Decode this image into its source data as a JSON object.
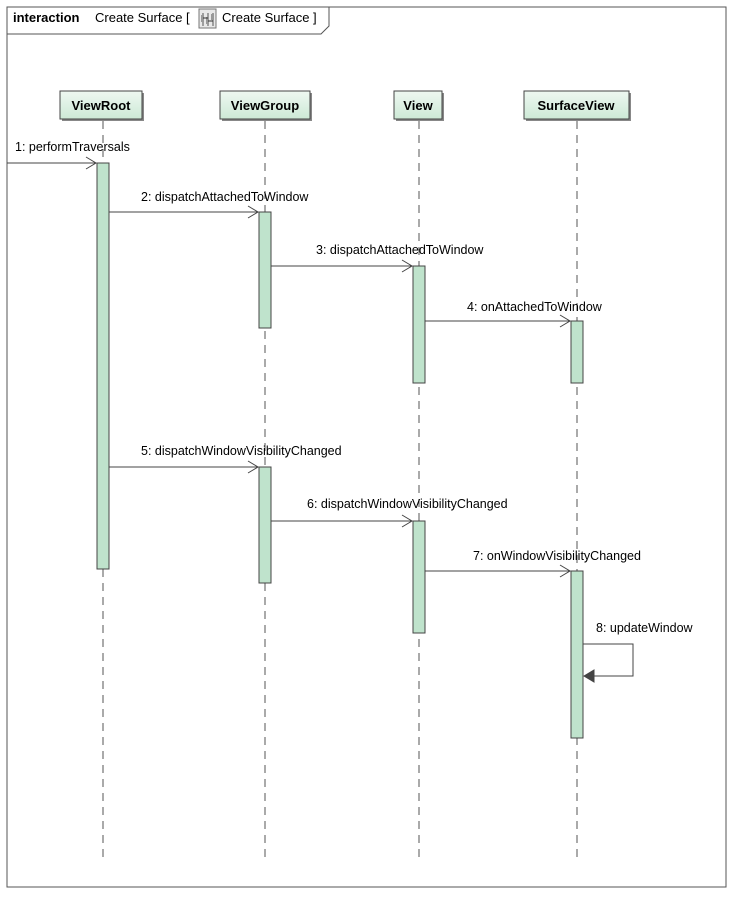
{
  "frame": {
    "keyword": "interaction",
    "name": "Create Surface [",
    "ref_name": "Create Surface ]"
  },
  "lifelines": [
    {
      "id": "viewroot",
      "label": "ViewRoot"
    },
    {
      "id": "viewgroup",
      "label": "ViewGroup"
    },
    {
      "id": "view",
      "label": "View"
    },
    {
      "id": "surfaceview",
      "label": "SurfaceView"
    }
  ],
  "messages": [
    {
      "id": 1,
      "label": "1: performTraversals",
      "from": "external",
      "to": "viewroot"
    },
    {
      "id": 2,
      "label": "2: dispatchAttachedToWindow",
      "from": "viewroot",
      "to": "viewgroup"
    },
    {
      "id": 3,
      "label": "3: dispatchAttachedToWindow",
      "from": "viewgroup",
      "to": "view"
    },
    {
      "id": 4,
      "label": "4: onAttachedToWindow",
      "from": "view",
      "to": "surfaceview"
    },
    {
      "id": 5,
      "label": "5: dispatchWindowVisibilityChanged",
      "from": "viewroot",
      "to": "viewgroup"
    },
    {
      "id": 6,
      "label": "6: dispatchWindowVisibilityChanged",
      "from": "viewgroup",
      "to": "view"
    },
    {
      "id": 7,
      "label": "7: onWindowVisibilityChanged",
      "from": "view",
      "to": "surfaceview"
    },
    {
      "id": 8,
      "label": "8: updateWindow",
      "from": "surfaceview",
      "to": "surfaceview"
    }
  ],
  "colors": {
    "activation_fill": "#bfe3cc",
    "head_fill": "#dff0e4",
    "line": "#555555"
  }
}
